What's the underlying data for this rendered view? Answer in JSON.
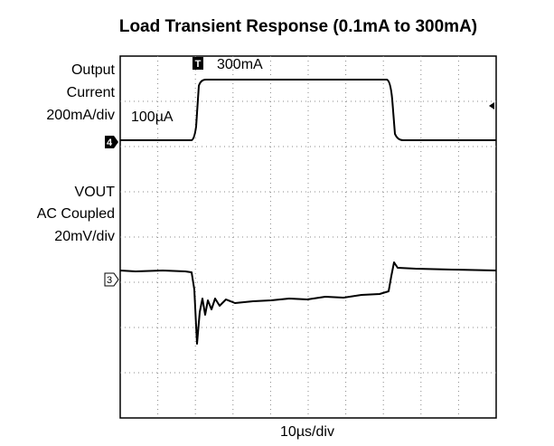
{
  "title": "Load Transient Response (0.1mA to 300mA)",
  "channel_labels": {
    "current": [
      "Output",
      "Current",
      "200mA/div"
    ],
    "voltage": [
      "VOUT",
      "AC Coupled",
      "20mV/div"
    ]
  },
  "annotations": {
    "low_level": "100µA",
    "high_level": "300mA",
    "timebase": "10µs/div"
  },
  "markers": {
    "current_channel": "4",
    "voltage_channel": "3",
    "trigger": "T"
  }
}
